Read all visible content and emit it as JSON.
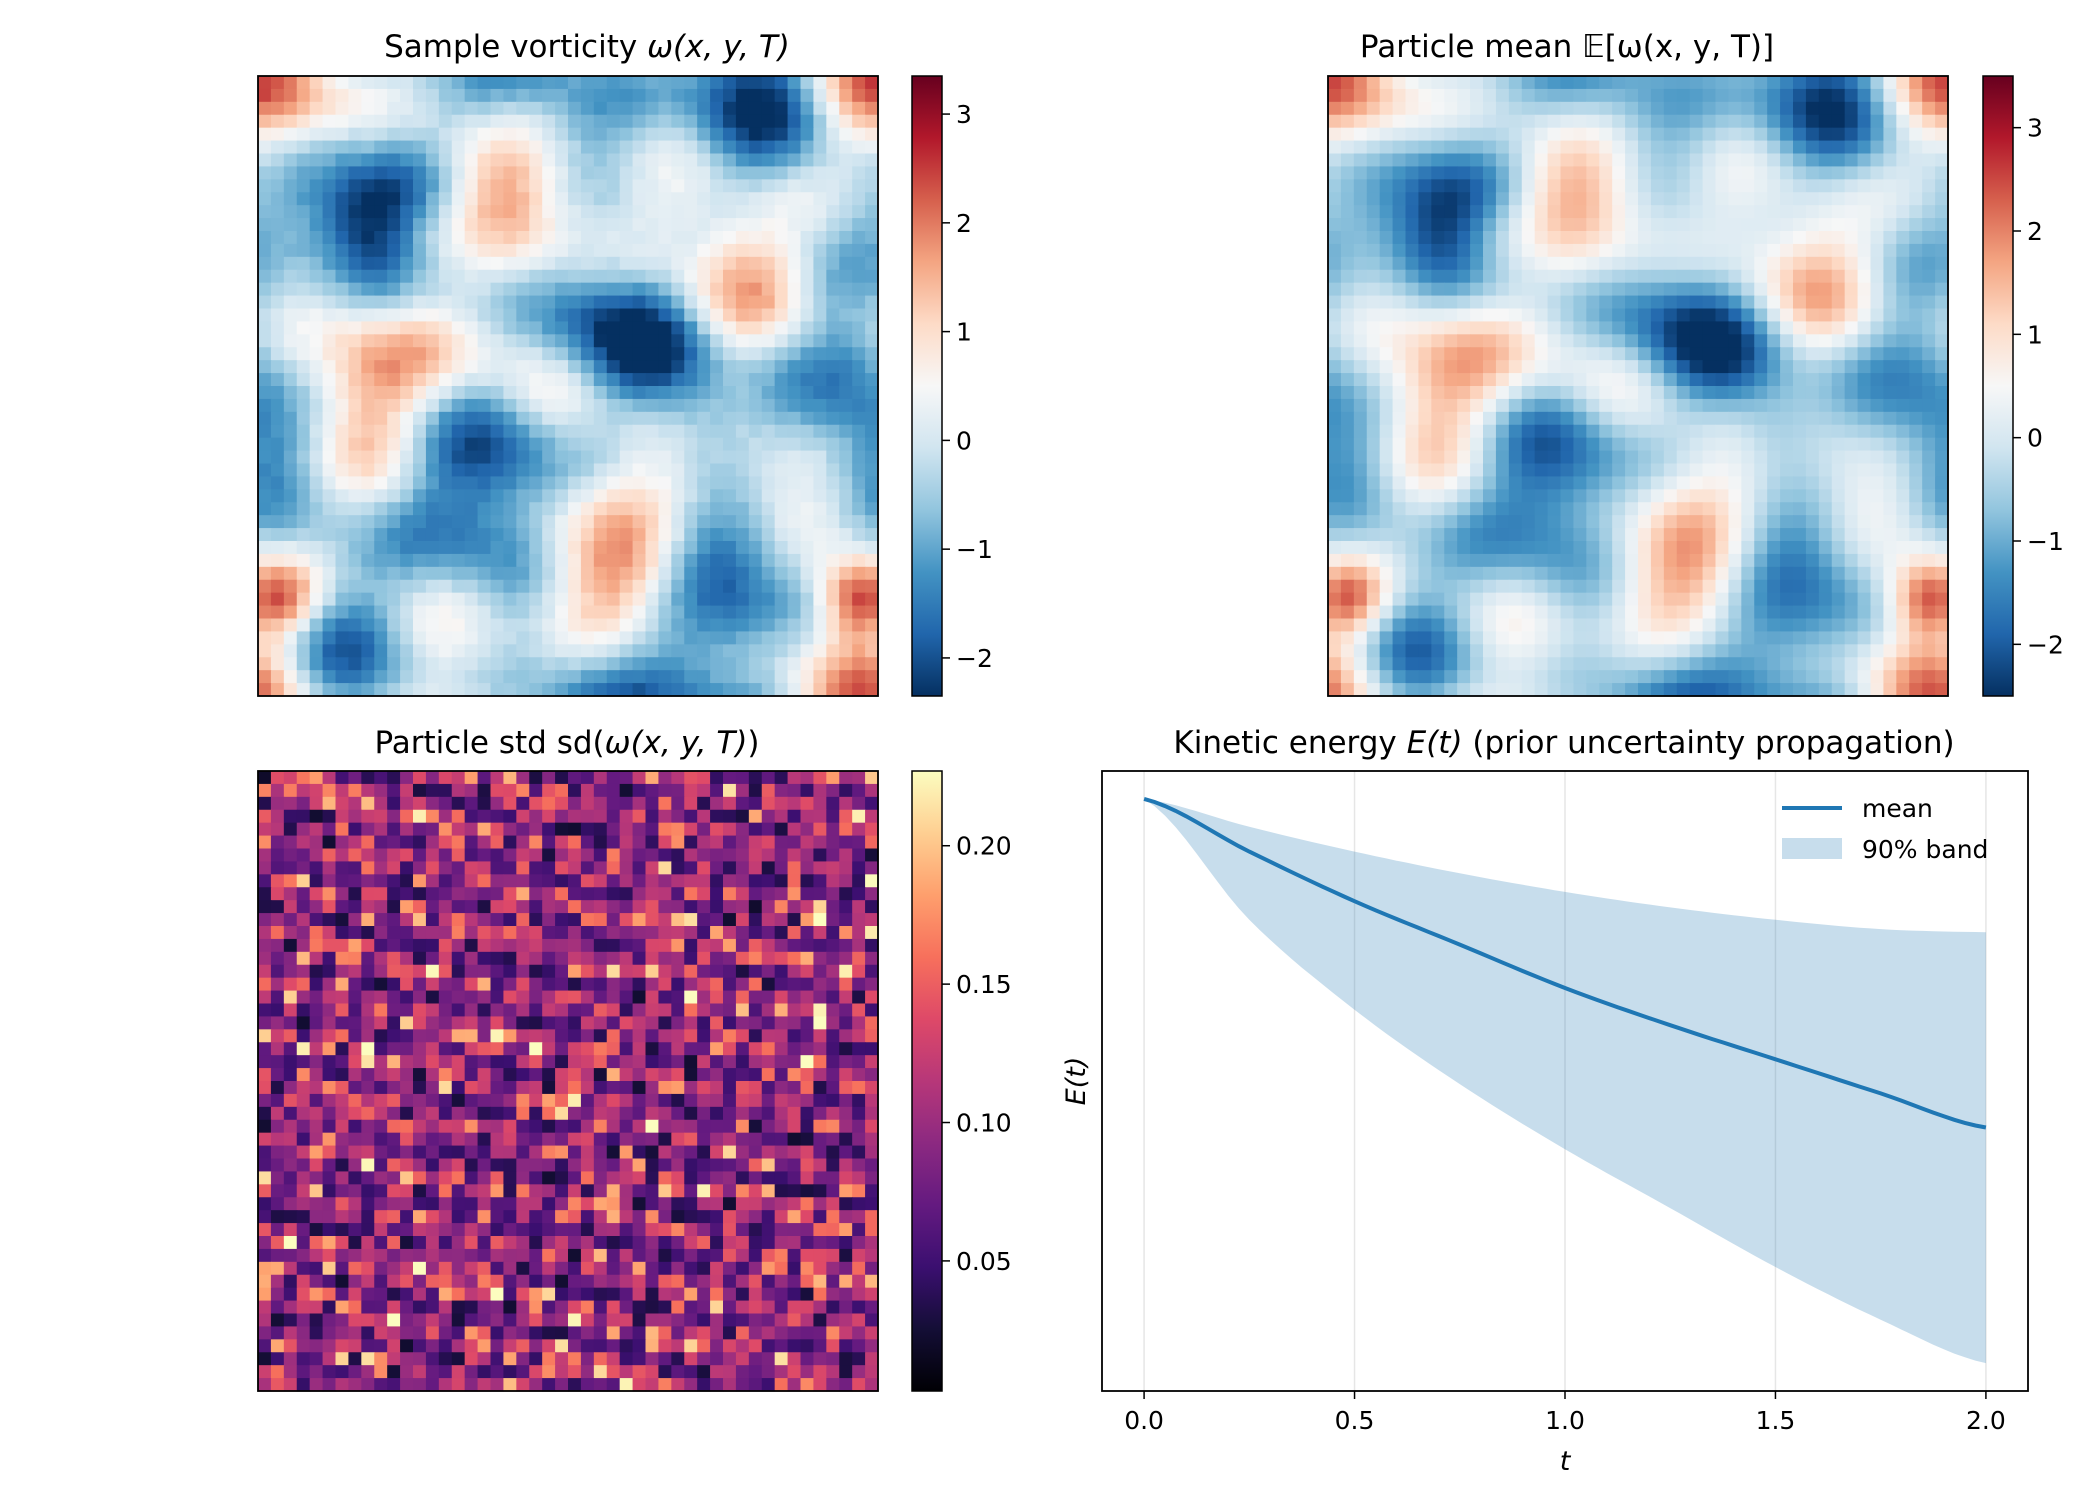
{
  "figure": {
    "colors": {
      "mean_line": "#1f77b4",
      "band_fill": "#1f77b4",
      "grid": "#e6e6e6"
    },
    "colormaps": {
      "RdBu_r": [
        "#053061",
        "#2166ac",
        "#4393c3",
        "#92c5de",
        "#d1e5f0",
        "#f7f7f7",
        "#fddbc7",
        "#f4a582",
        "#d6604d",
        "#b2182b",
        "#67001f"
      ],
      "magma": [
        "#000004",
        "#140e36",
        "#3b0f70",
        "#641a80",
        "#8c2981",
        "#b73779",
        "#de4968",
        "#f7705c",
        "#fe9f6d",
        "#fecf92",
        "#fcfdbf"
      ]
    }
  },
  "chart_data": [
    {
      "type": "heatmap",
      "id": "sample-vorticity",
      "title": "Sample vorticity ω(x, y, T)",
      "title_prefix": "Sample vorticity ",
      "title_math": "ω(x, y, T)",
      "grid_size": [
        48,
        48
      ],
      "colormap": "RdBu_r",
      "vmin": -2.35,
      "vmax": 3.35,
      "colorbar_ticks": [
        -2,
        -1,
        0,
        1,
        2,
        3
      ],
      "colorbar_tick_labels": [
        "−2",
        "−1",
        "0",
        "1",
        "2",
        "3"
      ],
      "xticks": [],
      "yticks": []
    },
    {
      "type": "heatmap",
      "id": "particle-mean",
      "title": "Particle mean 𝔼[ω(x, y, T)]",
      "title_prefix": "Particle mean ",
      "title_math": "𝔼[ω(x, y, T)]",
      "grid_size": [
        48,
        48
      ],
      "colormap": "RdBu_r",
      "vmin": -2.5,
      "vmax": 3.5,
      "colorbar_ticks": [
        -2,
        -1,
        0,
        1,
        2,
        3
      ],
      "colorbar_tick_labels": [
        "−2",
        "−1",
        "0",
        "1",
        "2",
        "3"
      ],
      "xticks": [],
      "yticks": []
    },
    {
      "type": "heatmap",
      "id": "particle-std",
      "title": "Particle std sd(ω(x, y, T))",
      "title_prefix": "Particle std sd(",
      "title_math": "ω(x, y, T)",
      "title_suffix": ")",
      "grid_size": [
        48,
        48
      ],
      "colormap": "magma",
      "vmin": 0.003,
      "vmax": 0.227,
      "colorbar_ticks": [
        0.05,
        0.1,
        0.15,
        0.2
      ],
      "colorbar_tick_labels": [
        "0.05",
        "0.10",
        "0.15",
        "0.20"
      ],
      "xticks": [],
      "yticks": []
    },
    {
      "type": "line",
      "id": "kinetic-energy",
      "title": "Kinetic energy E(t) (prior uncertainty propagation)",
      "title_prefix": "Kinetic energy ",
      "title_math": "E(t)",
      "title_suffix": " (prior uncertainty propagation)",
      "xlabel": "t",
      "ylabel": "E(t)",
      "xlim": [
        -0.1,
        2.1
      ],
      "ylim": [
        0.0,
        1.0
      ],
      "xticks": [
        0.0,
        0.5,
        1.0,
        1.5,
        2.0
      ],
      "xtick_labels": [
        "0.0",
        "0.5",
        "1.0",
        "1.5",
        "2.0"
      ],
      "yticks": [],
      "grid": "x-only",
      "legend_position": "upper-right",
      "legend": {
        "mean_label": "mean",
        "band_label": "90% band"
      },
      "x": [
        0.0,
        0.25,
        0.5,
        0.75,
        1.0,
        1.25,
        1.5,
        1.75,
        2.0
      ],
      "series": [
        {
          "name": "mean",
          "kind": "line",
          "values": [
            0.955,
            0.87,
            0.79,
            0.72,
            0.65,
            0.59,
            0.535,
            0.48,
            0.425
          ]
        },
        {
          "name": "90% band",
          "kind": "band",
          "lower": [
            0.955,
            0.76,
            0.615,
            0.495,
            0.39,
            0.295,
            0.2,
            0.115,
            0.045
          ],
          "upper": [
            0.955,
            0.91,
            0.87,
            0.835,
            0.805,
            0.78,
            0.76,
            0.745,
            0.74
          ]
        }
      ]
    }
  ]
}
